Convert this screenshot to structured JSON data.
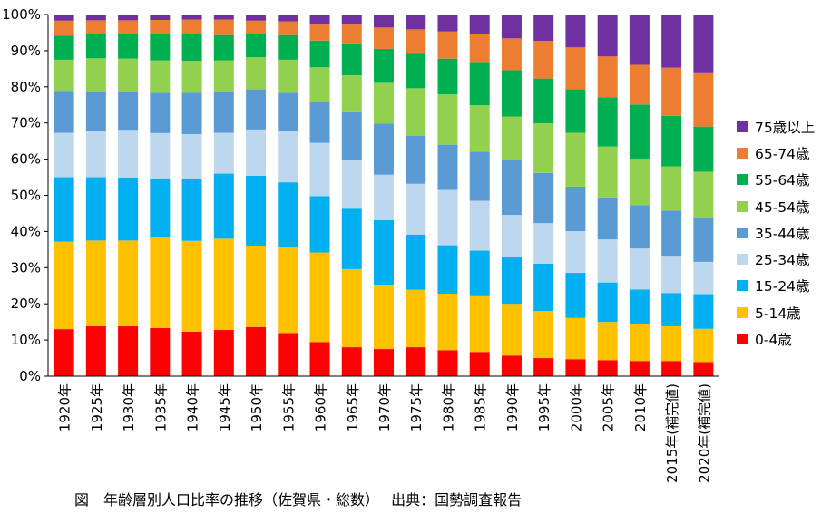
{
  "chart_data": {
    "type": "bar",
    "stacked": true,
    "categories": [
      "1920年",
      "1925年",
      "1930年",
      "1935年",
      "1940年",
      "1945年",
      "1950年",
      "1955年",
      "1960年",
      "1965年",
      "1970年",
      "1975年",
      "1980年",
      "1985年",
      "1990年",
      "1995年",
      "2000年",
      "2005年",
      "2010年",
      "2015年(補完値)",
      "2020年(補完値)"
    ],
    "y_tick_labels": [
      "0%",
      "10%",
      "20%",
      "30%",
      "40%",
      "50%",
      "60%",
      "70%",
      "80%",
      "90%",
      "100%"
    ],
    "ylim": [
      0,
      100
    ],
    "grid": false,
    "legend_position": "right",
    "series": [
      {
        "name": "0-4歳",
        "color": "#ff0000",
        "values": [
          13.0,
          13.8,
          13.8,
          13.3,
          12.3,
          12.8,
          13.6,
          11.9,
          9.4,
          8.0,
          7.5,
          8.0,
          7.2,
          6.7,
          5.7,
          5.0,
          4.7,
          4.4,
          4.2,
          4.2,
          3.9
        ]
      },
      {
        "name": "5-14歳",
        "color": "#ffc000",
        "values": [
          24.2,
          23.7,
          23.7,
          25.0,
          25.1,
          25.2,
          22.5,
          23.8,
          24.8,
          21.6,
          17.8,
          15.9,
          15.6,
          15.4,
          14.3,
          13.0,
          11.4,
          10.6,
          10.1,
          9.6,
          9.2
        ]
      },
      {
        "name": "15-24歳",
        "color": "#00b0f0",
        "values": [
          17.8,
          17.5,
          17.4,
          16.4,
          17.0,
          18.0,
          19.3,
          17.9,
          15.6,
          16.7,
          17.8,
          15.2,
          13.4,
          12.6,
          12.9,
          13.1,
          12.5,
          10.9,
          9.7,
          9.2,
          9.6
        ]
      },
      {
        "name": "25-34歳",
        "color": "#bdd7ee",
        "values": [
          12.3,
          12.8,
          13.2,
          12.5,
          12.5,
          11.3,
          12.8,
          14.2,
          14.7,
          13.5,
          12.6,
          14.1,
          15.3,
          13.8,
          11.7,
          11.2,
          11.5,
          11.9,
          11.3,
          10.3,
          8.9
        ]
      },
      {
        "name": "35-44歳",
        "color": "#5b9bd5",
        "values": [
          11.6,
          10.8,
          10.6,
          11.1,
          11.5,
          11.3,
          11.1,
          10.5,
          11.3,
          13.2,
          14.1,
          13.3,
          12.5,
          13.6,
          15.2,
          13.9,
          12.3,
          11.6,
          12.0,
          12.5,
          12.2
        ]
      },
      {
        "name": "45-54歳",
        "color": "#92d050",
        "values": [
          8.6,
          9.3,
          9.1,
          9.0,
          8.8,
          8.7,
          8.9,
          9.2,
          9.6,
          10.2,
          11.3,
          13.1,
          13.9,
          12.8,
          12.0,
          13.7,
          14.9,
          14.1,
          12.8,
          12.2,
          12.7
        ]
      },
      {
        "name": "55-64歳",
        "color": "#00b050",
        "values": [
          6.7,
          6.6,
          6.8,
          7.2,
          7.4,
          7.0,
          6.5,
          6.8,
          7.4,
          8.8,
          9.4,
          9.5,
          9.9,
          12.0,
          12.8,
          12.4,
          12.0,
          13.6,
          15.0,
          14.0,
          12.5
        ]
      },
      {
        "name": "65-74歳",
        "color": "#ed7d31",
        "values": [
          4.1,
          3.9,
          3.8,
          4.0,
          4.0,
          4.3,
          3.6,
          3.8,
          4.4,
          5.2,
          5.9,
          6.8,
          7.5,
          7.6,
          8.8,
          10.4,
          11.6,
          11.3,
          11.0,
          13.3,
          15.0
        ]
      },
      {
        "name": "75歳以上",
        "color": "#7030a0",
        "values": [
          1.7,
          1.6,
          1.6,
          1.5,
          1.4,
          1.4,
          1.7,
          1.9,
          2.8,
          2.8,
          3.6,
          4.1,
          4.7,
          5.5,
          6.6,
          7.3,
          9.1,
          11.6,
          13.9,
          14.7,
          16.0
        ]
      }
    ],
    "legend_order": [
      "75歳以上",
      "65-74歳",
      "55-64歳",
      "45-54歳",
      "35-44歳",
      "25-34歳",
      "15-24歳",
      "5-14歳",
      "0-4歳"
    ]
  },
  "caption": "図　年齢層別人口比率の推移（佐賀県・総数）　 出典：国勢調査報告"
}
